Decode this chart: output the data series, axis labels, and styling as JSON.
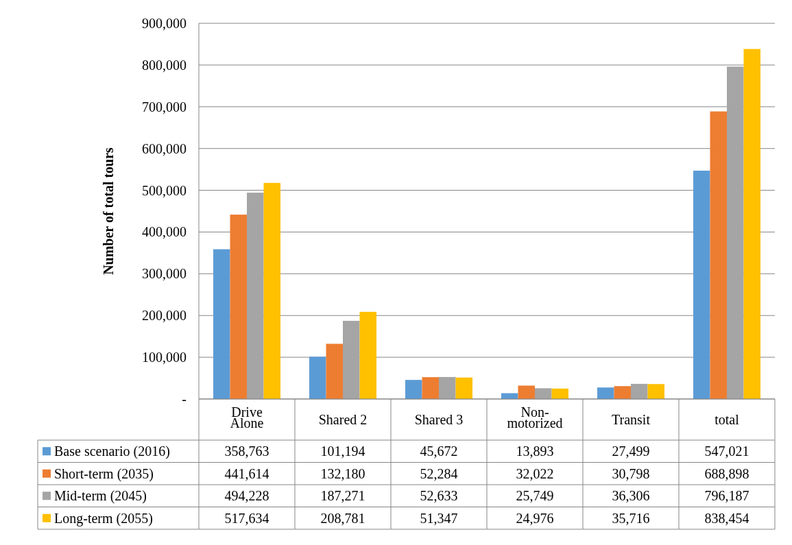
{
  "chart_data": {
    "type": "bar",
    "ylabel": "Number of total tours",
    "categories": [
      "Drive Alone",
      "Shared 2",
      "Shared 3",
      "Non-motorized",
      "Transit",
      "total"
    ],
    "series": [
      {
        "name": "Base scenario (2016)",
        "color": "#5b9bd5",
        "values": [
          358763,
          101194,
          45672,
          13893,
          27499,
          547021
        ],
        "value_labels": [
          "358,763",
          "101,194",
          "45,672",
          "13,893",
          "27,499",
          "547,021"
        ]
      },
      {
        "name": "Short-term (2035)",
        "color": "#ed7d31",
        "values": [
          441614,
          132180,
          52284,
          32022,
          30798,
          688898
        ],
        "value_labels": [
          "441,614",
          "132,180",
          "52,284",
          "32,022",
          "30,798",
          "688,898"
        ]
      },
      {
        "name": "Mid-term (2045)",
        "color": "#a5a5a5",
        "values": [
          494228,
          187271,
          52633,
          25749,
          36306,
          796187
        ],
        "value_labels": [
          "494,228",
          "187,271",
          "52,633",
          "25,749",
          "36,306",
          "796,187"
        ]
      },
      {
        "name": "Long-term (2055)",
        "color": "#ffc000",
        "values": [
          517634,
          208781,
          51347,
          24976,
          35716,
          838454
        ],
        "value_labels": [
          "517,634",
          "208,781",
          "51,347",
          "24,976",
          "35,716",
          "838,454"
        ]
      }
    ],
    "ylim": [
      0,
      900000
    ],
    "yticks": [
      {
        "value": 0,
        "label": "-"
      },
      {
        "value": 100000,
        "label": "100,000"
      },
      {
        "value": 200000,
        "label": "200,000"
      },
      {
        "value": 300000,
        "label": "300,000"
      },
      {
        "value": 400000,
        "label": "400,000"
      },
      {
        "value": 500000,
        "label": "500,000"
      },
      {
        "value": 600000,
        "label": "600,000"
      },
      {
        "value": 700000,
        "label": "700,000"
      },
      {
        "value": 800000,
        "label": "800,000"
      },
      {
        "value": 900000,
        "label": "900,000"
      }
    ],
    "grid": "y",
    "legend": "bottom left"
  }
}
